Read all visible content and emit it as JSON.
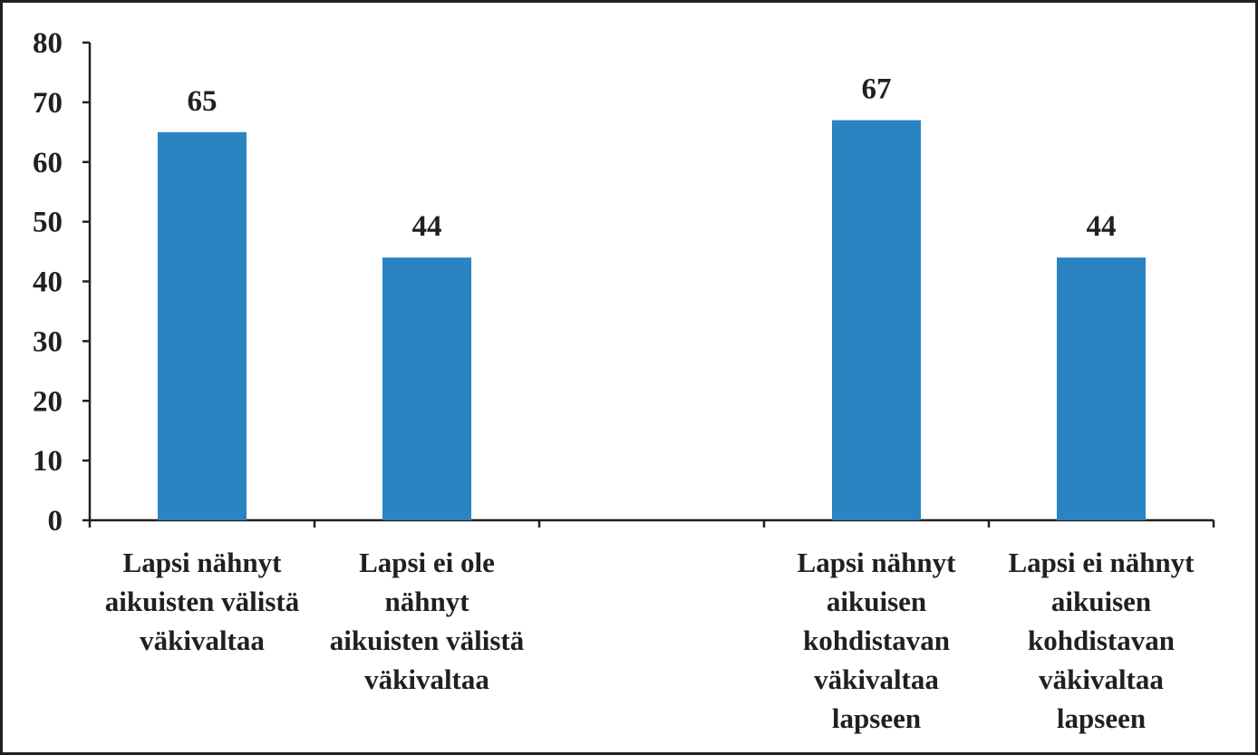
{
  "chart_data": {
    "type": "bar",
    "categories": [
      [
        "Lapsi nähnyt",
        "aikuisten välistä",
        "väkivaltaa"
      ],
      [
        "Lapsi ei ole",
        "nähnyt",
        "aikuisten välistä",
        "väkivaltaa"
      ],
      [],
      [
        "Lapsi nähnyt",
        "aikuisen",
        "kohdistavan",
        "väkivaltaa",
        "lapseen"
      ],
      [
        "Lapsi ei nähnyt",
        "aikuisen",
        "kohdistavan",
        "väkivaltaa",
        "lapseen"
      ]
    ],
    "values": [
      65,
      44,
      null,
      67,
      44
    ],
    "data_labels": [
      "65",
      "44",
      "",
      "67",
      "44"
    ],
    "ylim": [
      0,
      80
    ],
    "yticks": [
      0,
      10,
      20,
      30,
      40,
      50,
      60,
      70,
      80
    ],
    "title": "",
    "xlabel": "",
    "ylabel": "",
    "grid": false,
    "bar_color": "#2a84c2",
    "axis_color": "#231f20"
  }
}
